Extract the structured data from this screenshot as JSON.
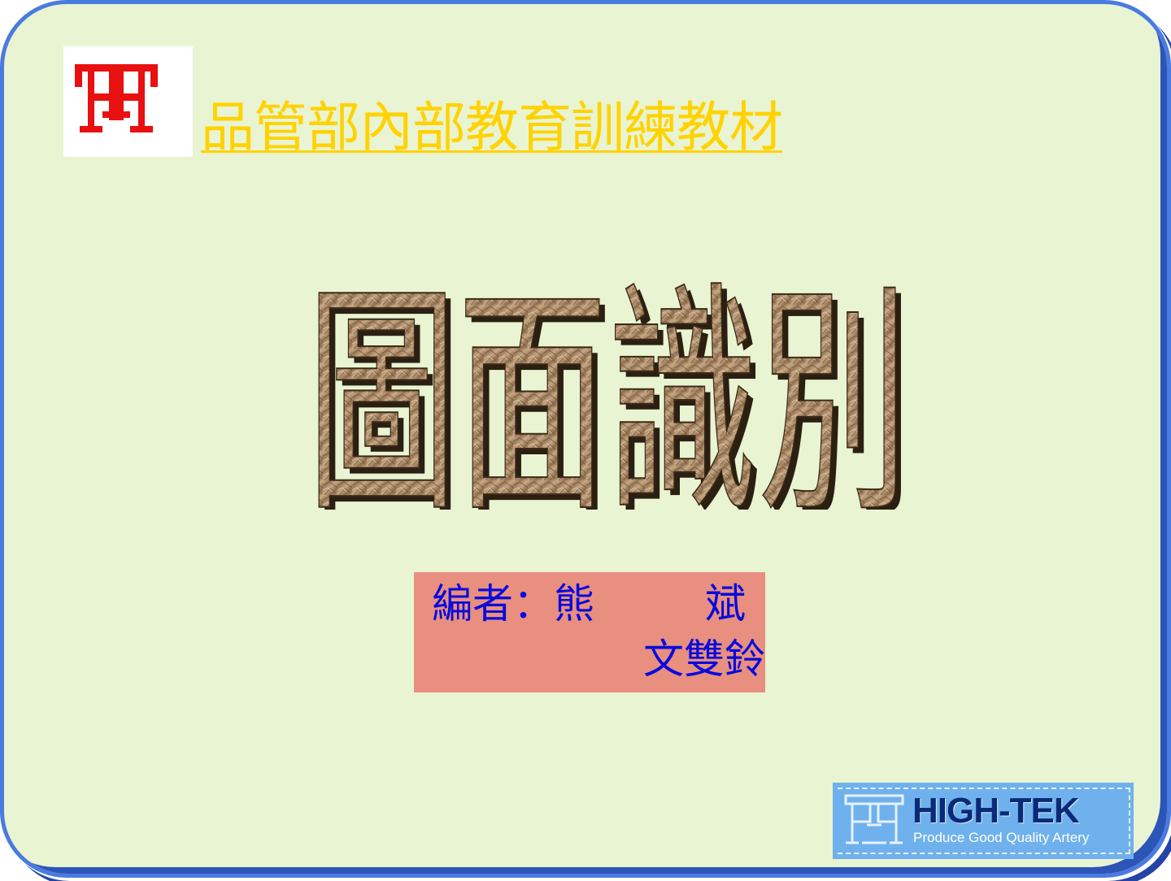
{
  "header": {
    "title": "品管部內部教育訓練教材",
    "logo_icon": "red-company-emblem-icon"
  },
  "main": {
    "title": "圖面識別"
  },
  "authors": {
    "label": "編者：熊",
    "name1_rest": "斌",
    "name2": "文雙鈴"
  },
  "brand": {
    "name": "HIGH-TEK",
    "tagline": "Produce Good Quality Artery",
    "mark_icon": "high-tek-logo-icon"
  },
  "colors": {
    "slide_background": "#e9f4d2",
    "border": "#4a7be0",
    "header_text": "#ffd200",
    "author_box": "#e88f80",
    "author_text": "#0a0adc",
    "brand_box": "#6fb1ec"
  }
}
